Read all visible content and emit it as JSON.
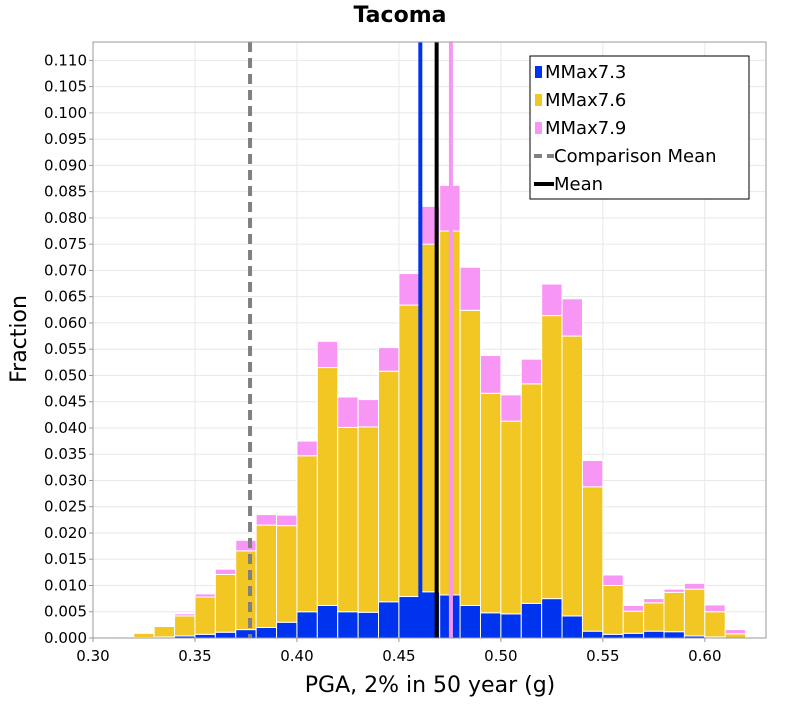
{
  "chart_data": {
    "type": "bar",
    "stacked": true,
    "title": "Tacoma",
    "xlabel": "PGA, 2% in 50 year (g)",
    "ylabel": "Fraction",
    "xlim": [
      0.3,
      0.63
    ],
    "ylim": [
      0,
      0.1135
    ],
    "bin_width": 0.01,
    "grid": true,
    "legend_position": "top-right",
    "x_ticks": [
      "0.30",
      "0.35",
      "0.40",
      "0.45",
      "0.50",
      "0.55",
      "0.60"
    ],
    "x_tick_values": [
      0.3,
      0.35,
      0.4,
      0.45,
      0.5,
      0.55,
      0.6
    ],
    "y_ticks": [
      "0.000",
      "0.005",
      "0.010",
      "0.015",
      "0.020",
      "0.025",
      "0.030",
      "0.035",
      "0.040",
      "0.045",
      "0.050",
      "0.055",
      "0.060",
      "0.065",
      "0.070",
      "0.075",
      "0.080",
      "0.085",
      "0.090",
      "0.095",
      "0.100",
      "0.105",
      "0.110"
    ],
    "y_tick_values": [
      0.0,
      0.005,
      0.01,
      0.015,
      0.02,
      0.025,
      0.03,
      0.035,
      0.04,
      0.045,
      0.05,
      0.055,
      0.06,
      0.065,
      0.07,
      0.075,
      0.08,
      0.085,
      0.09,
      0.095,
      0.1,
      0.105,
      0.11
    ],
    "x": [
      0.315,
      0.325,
      0.335,
      0.345,
      0.355,
      0.365,
      0.375,
      0.385,
      0.395,
      0.405,
      0.415,
      0.425,
      0.435,
      0.445,
      0.455,
      0.465,
      0.475,
      0.485,
      0.495,
      0.505,
      0.515,
      0.525,
      0.535,
      0.545,
      0.555,
      0.565,
      0.575,
      0.585,
      0.595,
      0.605,
      0.615
    ],
    "series": [
      {
        "name": "MMax7.3",
        "color": "#0033ee",
        "values": [
          0.0,
          0.0001,
          0.0002,
          0.0004,
          0.0007,
          0.0011,
          0.0016,
          0.002,
          0.003,
          0.005,
          0.0062,
          0.005,
          0.0049,
          0.0069,
          0.0079,
          0.0088,
          0.0082,
          0.0062,
          0.0048,
          0.0046,
          0.0066,
          0.0075,
          0.0042,
          0.0013,
          0.0007,
          0.0009,
          0.0013,
          0.0012,
          0.0004,
          0.0002,
          0.0
        ]
      },
      {
        "name": "MMax7.6",
        "color": "#f2c623",
        "values": [
          0.0002,
          0.0008,
          0.002,
          0.0038,
          0.0071,
          0.011,
          0.015,
          0.0195,
          0.0184,
          0.0297,
          0.0453,
          0.0351,
          0.0353,
          0.0439,
          0.0555,
          0.0662,
          0.0693,
          0.0562,
          0.0418,
          0.0367,
          0.0418,
          0.0539,
          0.0533,
          0.0275,
          0.0093,
          0.0042,
          0.0054,
          0.0075,
          0.0089,
          0.0048,
          0.0008
        ]
      },
      {
        "name": "MMax7.9",
        "color": "#f896f6",
        "values": [
          0.0,
          0.0001,
          0.0001,
          0.0004,
          0.0006,
          0.001,
          0.002,
          0.002,
          0.002,
          0.0028,
          0.005,
          0.0058,
          0.0052,
          0.0045,
          0.006,
          0.0072,
          0.0087,
          0.0082,
          0.0072,
          0.005,
          0.0047,
          0.006,
          0.0071,
          0.005,
          0.002,
          0.0011,
          0.0008,
          0.0006,
          0.0011,
          0.0013,
          0.0008
        ]
      }
    ],
    "vlines": [
      {
        "series": "MMax7.3",
        "x": 0.4605,
        "color": "#0033ee",
        "style": "solid"
      },
      {
        "series": "MMax7.9",
        "x": 0.4755,
        "color": "#f896f6",
        "style": "solid"
      },
      {
        "name": "Comparison Mean",
        "x": 0.377,
        "color": "#808080",
        "style": "dashed"
      },
      {
        "name": "Mean",
        "x": 0.4685,
        "color": "#000000",
        "style": "solid"
      }
    ],
    "legend": [
      {
        "label": "MMax7.3",
        "color": "#0033ee",
        "kind": "box"
      },
      {
        "label": "MMax7.6",
        "color": "#f2c623",
        "kind": "box"
      },
      {
        "label": "MMax7.9",
        "color": "#f896f6",
        "kind": "box"
      },
      {
        "label": "Comparison Mean",
        "color": "#808080",
        "kind": "dashed"
      },
      {
        "label": "Mean",
        "color": "#000000",
        "kind": "solid"
      }
    ]
  }
}
